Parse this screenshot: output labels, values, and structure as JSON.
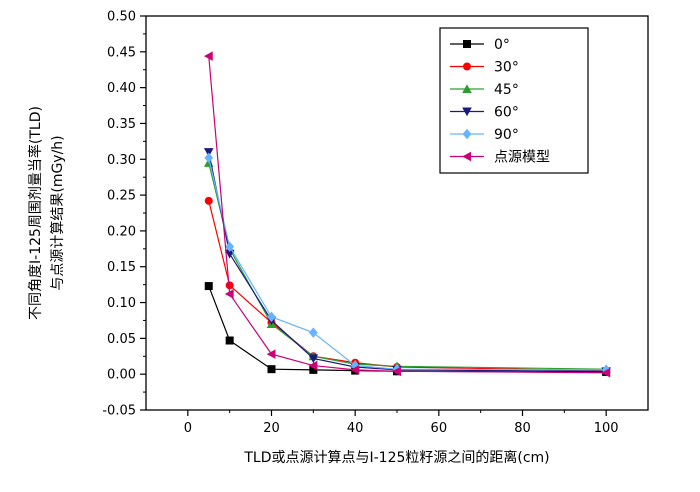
{
  "chart_data": {
    "type": "line",
    "title": "",
    "xlabel": "TLD或点源计算点与I-125粒籽源之间的距离(cm)",
    "ylabel_line1": "不同角度I-125周围剂量当率(TLD)",
    "ylabel_line2": "与点源计算结果(mGy/h)",
    "xlim": [
      -10,
      110
    ],
    "ylim": [
      -0.05,
      0.5
    ],
    "xticks": [
      "0",
      "20",
      "40",
      "60",
      "80",
      "100"
    ],
    "xtick_values": [
      0,
      20,
      40,
      60,
      80,
      100
    ],
    "yticks": [
      "-0.05",
      "0.00",
      "0.05",
      "0.10",
      "0.15",
      "0.20",
      "0.25",
      "0.30",
      "0.35",
      "0.40",
      "0.45",
      "0.50"
    ],
    "ytick_values": [
      -0.05,
      0.0,
      0.05,
      0.1,
      0.15,
      0.2,
      0.25,
      0.3,
      0.35,
      0.4,
      0.45,
      0.5
    ],
    "legend_position": "top-right",
    "grid": false,
    "series": [
      {
        "name": "0°",
        "color": "#000000",
        "marker": "square",
        "x": [
          5,
          10,
          20,
          30,
          40,
          50,
          100
        ],
        "y": [
          0.123,
          0.047,
          0.007,
          0.006,
          0.005,
          0.004,
          0.003
        ]
      },
      {
        "name": "30°",
        "color": "#ff0000",
        "marker": "circle",
        "x": [
          5,
          10,
          20,
          30,
          40,
          50,
          100
        ],
        "y": [
          0.242,
          0.124,
          0.072,
          0.025,
          0.016,
          0.01,
          0.005
        ]
      },
      {
        "name": "45°",
        "color": "#2ca02c",
        "marker": "triangle-up",
        "x": [
          5,
          10,
          20,
          30,
          40,
          50,
          100
        ],
        "y": [
          0.295,
          0.175,
          0.07,
          0.025,
          0.014,
          0.011,
          0.007
        ]
      },
      {
        "name": "60°",
        "color": "#1a1a80",
        "marker": "triangle-down",
        "x": [
          5,
          10,
          20,
          30,
          40,
          50,
          100
        ],
        "y": [
          0.31,
          0.168,
          0.075,
          0.022,
          0.01,
          0.006,
          0.004
        ]
      },
      {
        "name": "90°",
        "color": "#66b3ff",
        "marker": "diamond",
        "x": [
          5,
          10,
          20,
          30,
          40,
          50,
          100
        ],
        "y": [
          0.302,
          0.178,
          0.08,
          0.058,
          0.012,
          0.007,
          0.006
        ]
      },
      {
        "name": "点源模型",
        "color": "#cc0077",
        "marker": "triangle-left",
        "x": [
          5,
          10,
          20,
          30,
          40,
          50,
          100
        ],
        "y": [
          0.444,
          0.112,
          0.028,
          0.012,
          0.006,
          0.004,
          0.002
        ]
      }
    ]
  }
}
